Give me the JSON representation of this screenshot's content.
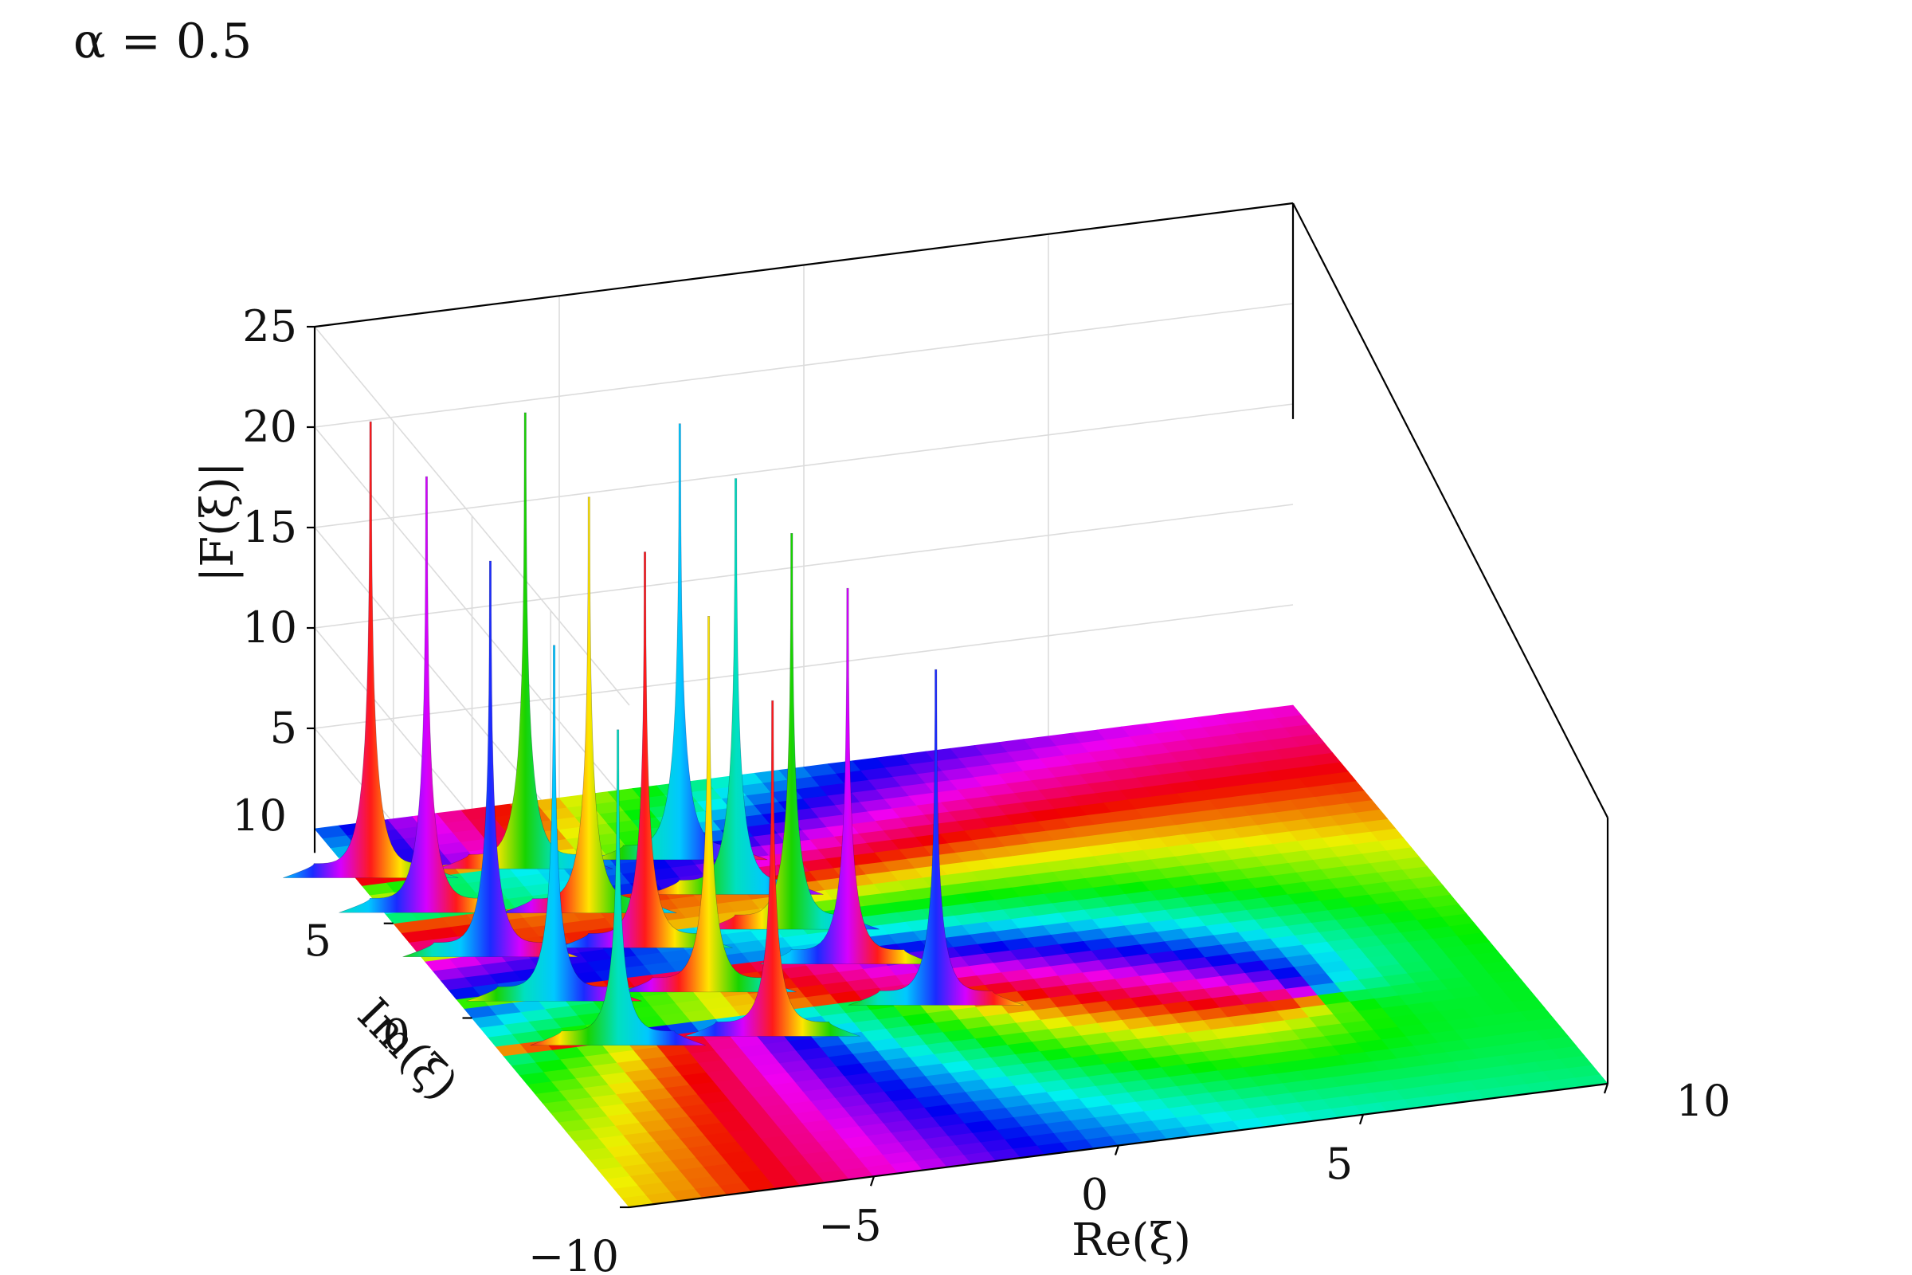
{
  "chart_data": {
    "type": "surface",
    "title": "α = 0.5",
    "xlabel": "Re(ξ)",
    "ylabel": "Im(ξ)",
    "zlabel": "|F(ξ)|",
    "xlim": [
      -10,
      10
    ],
    "ylim": [
      -10,
      10
    ],
    "zlim": [
      0,
      25
    ],
    "x_ticks": [
      -5,
      0,
      5,
      10
    ],
    "x_tick_labels": [
      "−5",
      "0",
      "5",
      "10"
    ],
    "y_ticks": [
      -10,
      0,
      5
    ],
    "y_tick_labels": [
      "−10",
      "0",
      "5"
    ],
    "z_ticks": [
      5,
      10,
      15,
      20,
      25
    ],
    "z_tick_labels": [
      "5",
      "10",
      "15",
      "20",
      "25"
    ],
    "z_extra_label": "10",
    "grid": true,
    "color_encoding": "hue = arg F(ξ)",
    "poles": [
      {
        "re": -1.0,
        "im": -1.5,
        "height": 16
      },
      {
        "re": -2.0,
        "im": 1.0,
        "height": 18
      },
      {
        "re": -2.5,
        "im": 3.0,
        "height": 19
      },
      {
        "re": -3.0,
        "im": 5.0,
        "height": 20
      },
      {
        "re": -3.5,
        "im": 7.0,
        "height": 21
      },
      {
        "re": -4.5,
        "im": -2.0,
        "height": 16
      },
      {
        "re": -5.0,
        "im": 0.5,
        "height": 18
      },
      {
        "re": -5.5,
        "im": 3.0,
        "height": 19
      },
      {
        "re": -6.0,
        "im": 5.0,
        "height": 20
      },
      {
        "re": -6.5,
        "im": 7.5,
        "height": 22
      },
      {
        "re": -7.5,
        "im": -1.5,
        "height": 15
      },
      {
        "re": -8.0,
        "im": 1.0,
        "height": 17
      },
      {
        "re": -8.5,
        "im": 3.5,
        "height": 19
      },
      {
        "re": -9.0,
        "im": 6.0,
        "height": 21
      },
      {
        "re": -9.5,
        "im": 8.0,
        "height": 22
      }
    ]
  }
}
